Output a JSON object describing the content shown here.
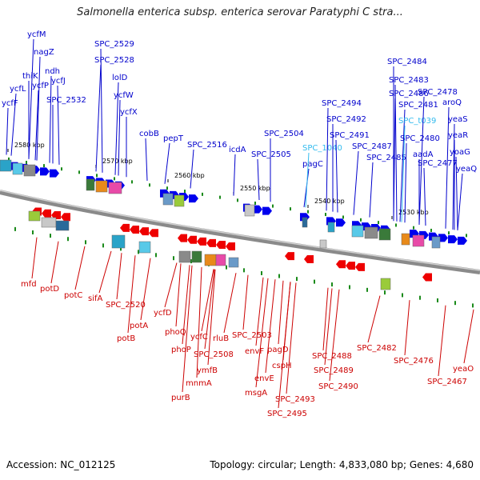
{
  "title": "Salmonella enterica subsp. enterica serovar Paratyphi C stra...",
  "footer": {
    "accession": "Accession: NC_012125",
    "stats": "Topology: circular; Length: 4,833,080 bp; Genes: 4,680"
  },
  "colors": {
    "forward_gene": "#0000ee",
    "reverse_gene": "#ee0000",
    "forward_label": "#0000cc",
    "reverse_label": "#cc0000",
    "highlight_label": "#33bbee",
    "backbone": "#8a8a8a",
    "tick": "#1a8a1a"
  },
  "ruler": [
    "2580 kbp",
    "2570 kbp",
    "2560 kbp",
    "2550 kbp",
    "2540 kbp",
    "2530 kbp"
  ],
  "forward_labels": [
    "ycfM",
    "nagZ",
    "ndh",
    "thiK",
    "ycfJ",
    "ycfL",
    "ycfP",
    "ycfF",
    "SPC_2532",
    "SPC_2529",
    "SPC_2528",
    "lolD",
    "ycfW",
    "ycfX",
    "cobB",
    "pepT",
    "SPC_2516",
    "icdA",
    "SPC_2504",
    "SPC_2505",
    "pagC",
    "SPC_1040",
    "SPC_2494",
    "SPC_2492",
    "SPC_2491",
    "SPC_2487",
    "SPC_2485",
    "SPC_2486",
    "SPC_2484",
    "SPC_2483",
    "SPC_2481",
    "SPC_t039",
    "SPC_2480",
    "aadA",
    "SPC_2477",
    "SPC_2478",
    "aroQ",
    "yeaS",
    "yeaR",
    "yoaG",
    "yeaQ"
  ],
  "reverse_labels": [
    "mfd",
    "potD",
    "potC",
    "sifA",
    "SPC_2520",
    "potB",
    "potA",
    "ycfD",
    "phoQ",
    "phoP",
    "purB",
    "ycfC",
    "mnmA",
    "ymfB",
    "SPC_2508",
    "rluB",
    "SPC_2503",
    "envF",
    "envE",
    "msgA",
    "pagD",
    "cspH",
    "SPC_2493",
    "SPC_2495",
    "SPC_2488",
    "SPC_2489",
    "SPC_2490",
    "SPC_2482",
    "SPC_2476",
    "SPC_2467",
    "yeaO"
  ]
}
